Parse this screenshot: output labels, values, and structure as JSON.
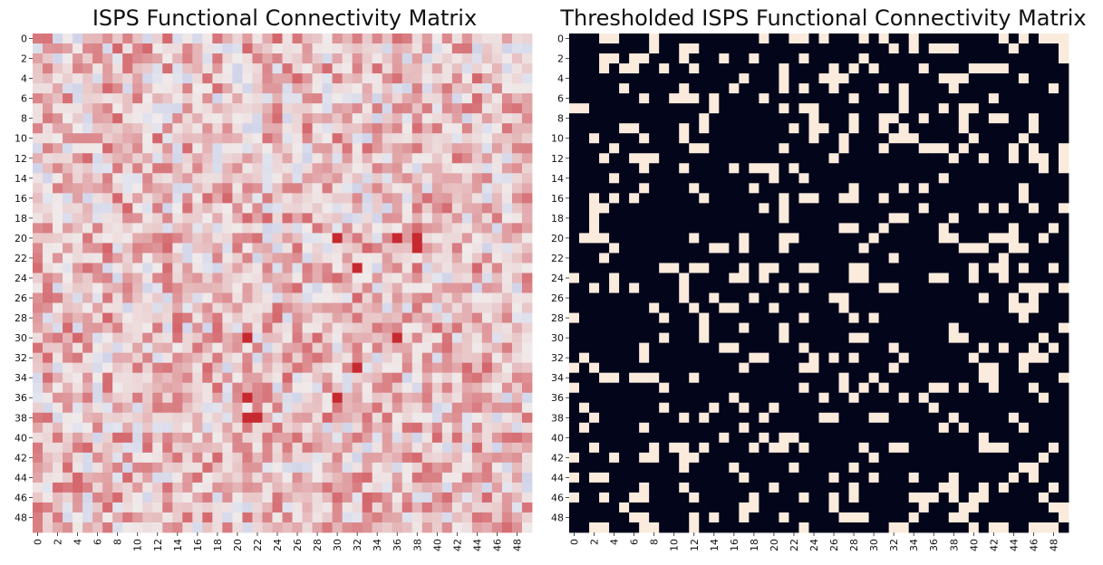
{
  "chart_data": [
    {
      "type": "heatmap",
      "title": "ISPS Functional Connectivity Matrix",
      "xlabel": "",
      "ylabel": "",
      "rows": 50,
      "cols": 50,
      "tick_labels": [
        "0",
        "2",
        "4",
        "6",
        "8",
        "10",
        "12",
        "14",
        "16",
        "18",
        "20",
        "22",
        "24",
        "26",
        "28",
        "30",
        "32",
        "34",
        "36",
        "38",
        "40",
        "42",
        "44",
        "46",
        "48"
      ],
      "colormap": "coolwarm-diverging",
      "colors": {
        "low": "#3b4cc0",
        "mid": "#f2f2f2",
        "high": "#c41e26"
      },
      "values_note": "",
      "highlight_cells": [
        [
          20,
          30
        ],
        [
          20,
          36
        ],
        [
          20,
          38
        ],
        [
          21,
          38
        ],
        [
          30,
          21
        ],
        [
          30,
          36
        ],
        [
          36,
          21
        ],
        [
          36,
          30
        ],
        [
          38,
          21
        ],
        [
          38,
          22
        ],
        [
          33,
          32
        ],
        [
          23,
          32
        ]
      ],
      "seed": 7
    },
    {
      "type": "heatmap",
      "title": "Thresholded ISPS Functional Connectivity Matrix",
      "xlabel": "",
      "ylabel": "",
      "rows": 50,
      "cols": 50,
      "tick_labels": [
        "0",
        "2",
        "4",
        "6",
        "8",
        "10",
        "12",
        "14",
        "16",
        "18",
        "20",
        "22",
        "24",
        "26",
        "28",
        "30",
        "32",
        "34",
        "36",
        "38",
        "40",
        "42",
        "44",
        "46",
        "48"
      ],
      "colormap": "binary",
      "colors": {
        "off": "#03051a",
        "on": "#faebdd"
      },
      "seed": 13
    }
  ]
}
